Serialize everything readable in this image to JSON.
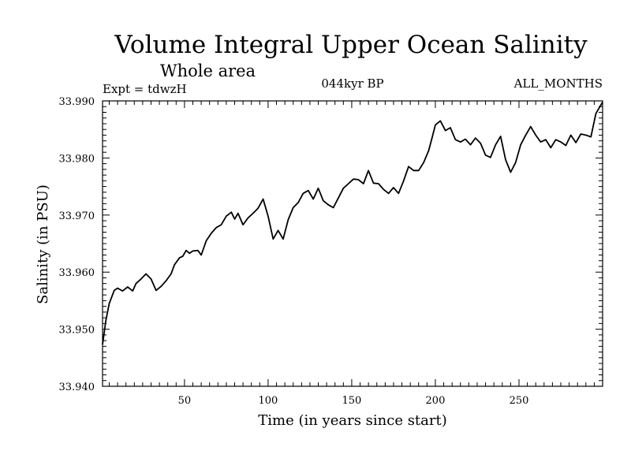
{
  "chart_data": {
    "type": "line",
    "title": "Volume Integral Upper Ocean Salinity",
    "subtitle": "Whole area",
    "header_left": "Expt = tdwzH",
    "header_center": "044kyr BP",
    "header_right": "ALL_MONTHS",
    "xlabel": "Time (in years since start)",
    "ylabel": "Salinity (in PSU)",
    "xlim": [
      1,
      300
    ],
    "ylim": [
      33.94,
      33.99
    ],
    "x_ticks": [
      50,
      100,
      150,
      200,
      250
    ],
    "x_tick_labels": [
      "50",
      "100",
      "150",
      "200",
      "250"
    ],
    "y_ticks": [
      33.94,
      33.95,
      33.96,
      33.97,
      33.98,
      33.99
    ],
    "y_tick_labels": [
      "33.940",
      "33.950",
      "33.960",
      "33.970",
      "33.980",
      "33.990"
    ],
    "grid": false,
    "series": [
      {
        "x": [
          1,
          3,
          5,
          8,
          10,
          13,
          16,
          19,
          21,
          24,
          27,
          30,
          33,
          36,
          39,
          42,
          44,
          47,
          49,
          51,
          53,
          55,
          58,
          60,
          63,
          66,
          69,
          72,
          75,
          78,
          80,
          82,
          85,
          88,
          91,
          94,
          97,
          100,
          103,
          106,
          109,
          112,
          115,
          118,
          121,
          124,
          127,
          130,
          133,
          136,
          139,
          142,
          145,
          148,
          151,
          154,
          157,
          160,
          163,
          166,
          169,
          172,
          175,
          178,
          181,
          184,
          187,
          190,
          193,
          196,
          198,
          200,
          203,
          206,
          209,
          212,
          215,
          218,
          221,
          224,
          227,
          230,
          233,
          236,
          239,
          242,
          245,
          248,
          251,
          254,
          257,
          260,
          263,
          266,
          269,
          272,
          275,
          278,
          281,
          284,
          287,
          290,
          293,
          296,
          300
        ],
        "y": [
          33.9473,
          33.9515,
          33.9545,
          33.9568,
          33.9572,
          33.9567,
          33.9574,
          33.9567,
          33.958,
          33.9588,
          33.9597,
          33.9588,
          33.9568,
          33.9575,
          33.9585,
          33.9597,
          33.9613,
          33.9625,
          33.9628,
          33.9638,
          33.9633,
          33.9637,
          33.9638,
          33.963,
          33.9655,
          33.9668,
          33.9678,
          33.9683,
          33.9698,
          33.9705,
          33.9693,
          33.9703,
          33.9683,
          33.9695,
          33.9703,
          33.9712,
          33.9728,
          33.9698,
          33.9658,
          33.9673,
          33.9658,
          33.9692,
          33.9713,
          33.9722,
          33.9738,
          33.9743,
          33.9728,
          33.9747,
          33.9725,
          33.9718,
          33.9713,
          33.973,
          33.9747,
          33.9755,
          33.9763,
          33.9762,
          33.9755,
          33.9778,
          33.9756,
          33.9755,
          33.9745,
          33.9738,
          33.9748,
          33.9738,
          33.976,
          33.9785,
          33.9778,
          33.9778,
          33.9792,
          33.9813,
          33.9835,
          33.9858,
          33.9865,
          33.9848,
          33.9853,
          33.9832,
          33.9828,
          33.9833,
          33.9823,
          33.9835,
          33.9826,
          33.9805,
          33.9801,
          33.9823,
          33.9838,
          33.9797,
          33.9775,
          33.9792,
          33.9823,
          33.984,
          33.9855,
          33.984,
          33.9828,
          33.9832,
          33.9818,
          33.9832,
          33.9828,
          33.9822,
          33.984,
          33.9827,
          33.9842,
          33.984,
          33.9837,
          33.9878,
          33.9898
        ]
      }
    ]
  }
}
